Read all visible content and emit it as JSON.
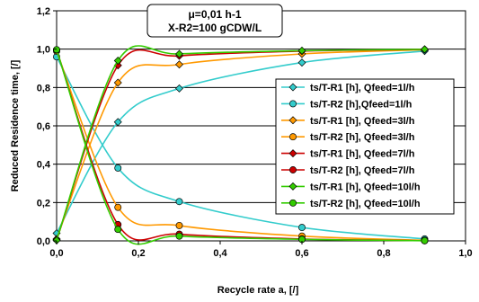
{
  "chart_data": {
    "type": "line",
    "title": "",
    "xlabel": "Recycle rate a, [/]",
    "ylabel": "Reduced Residence time, [/]",
    "xlim": [
      0,
      1.0
    ],
    "ylim": [
      0,
      1.2
    ],
    "x_ticks": [
      "0,0",
      "0,2",
      "0,4",
      "0,6",
      "0,8",
      "1,0"
    ],
    "y_ticks": [
      "0,0",
      "0,2",
      "0,4",
      "0,6",
      "0,8",
      "1,0",
      "1,2"
    ],
    "grid": "horizontal",
    "legend_position": "right",
    "annotation": {
      "line1": "μ=0,01 h-1",
      "line2": "X-R2=100 gCDW/L"
    },
    "series": [
      {
        "name": "ts/T-R1 [h], Qfeed=1l/h",
        "color": "#33CCCC",
        "marker": "diamond",
        "x": [
          0,
          0.15,
          0.3,
          0.6,
          0.9
        ],
        "y": [
          0.04,
          0.62,
          0.795,
          0.93,
          0.99
        ]
      },
      {
        "name": "ts/T-R2 [h],Qfeed=1l/h",
        "color": "#33CCCC",
        "marker": "circle",
        "x": [
          0,
          0.15,
          0.3,
          0.6,
          0.9
        ],
        "y": [
          0.96,
          0.38,
          0.205,
          0.07,
          0.01
        ]
      },
      {
        "name": "ts/T-R1 [h], Qfeed=3l/h",
        "color": "#FF9900",
        "marker": "diamond",
        "x": [
          0,
          0.15,
          0.3,
          0.6,
          0.9
        ],
        "y": [
          0.01,
          0.825,
          0.92,
          0.975,
          0.997
        ]
      },
      {
        "name": "ts/T-R2 [h], Qfeed=3l/h",
        "color": "#FF9900",
        "marker": "circle",
        "x": [
          0,
          0.15,
          0.3,
          0.6,
          0.9
        ],
        "y": [
          0.99,
          0.175,
          0.08,
          0.025,
          0.003
        ]
      },
      {
        "name": "ts/T-R1 [h], Qfeed=7l/h",
        "color": "#CC0000",
        "marker": "diamond",
        "x": [
          0,
          0.15,
          0.3,
          0.6,
          0.9
        ],
        "y": [
          0.005,
          0.915,
          0.965,
          0.99,
          0.999
        ]
      },
      {
        "name": "ts/T-R2 [h], Qfeed=7l/h",
        "color": "#CC0000",
        "marker": "circle",
        "x": [
          0,
          0.15,
          0.3,
          0.6,
          0.9
        ],
        "y": [
          0.995,
          0.085,
          0.035,
          0.01,
          0.001
        ]
      },
      {
        "name": "ts/T-R1 [h], Qfeed=10l/h",
        "color": "#33CC00",
        "marker": "diamond",
        "x": [
          0,
          0.15,
          0.3,
          0.6,
          0.9
        ],
        "y": [
          0.003,
          0.94,
          0.975,
          0.992,
          0.999
        ]
      },
      {
        "name": "ts/T-R2 [h], Qfeed=10l/h",
        "color": "#33CC00",
        "marker": "circle",
        "x": [
          0,
          0.15,
          0.3,
          0.6,
          0.9
        ],
        "y": [
          0.997,
          0.06,
          0.025,
          0.008,
          0.001
        ]
      }
    ]
  }
}
